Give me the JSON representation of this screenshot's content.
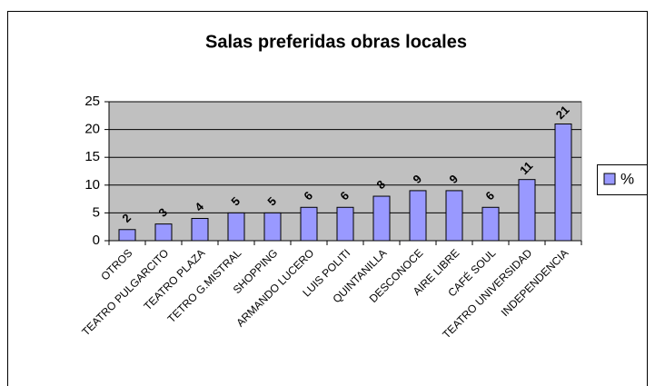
{
  "chart_data": {
    "type": "bar",
    "title": "Salas preferidas obras locales",
    "categories": [
      "OTROS",
      "TEATRO PULGARCITO",
      "TEATRO PLAZA",
      "TETRO G.MISTRAL",
      "SHOPPING",
      "ARMANDO LUCERO",
      "LUIS POLITI",
      "QUINTANILLA",
      "DESCONOCE",
      "AIRE LIBRE",
      "CAFÉ SOUL",
      "TEATRO UNIVERSIDAD",
      "INDEPENDENCIA"
    ],
    "series": [
      {
        "name": "%",
        "color": "#9999ff",
        "values": [
          2,
          3,
          4,
          5,
          5,
          6,
          6,
          8,
          9,
          9,
          6,
          11,
          21
        ]
      }
    ],
    "ylim": [
      0,
      25
    ],
    "yticks": [
      0,
      5,
      10,
      15,
      20,
      25
    ],
    "grid": true,
    "legend": "right"
  }
}
